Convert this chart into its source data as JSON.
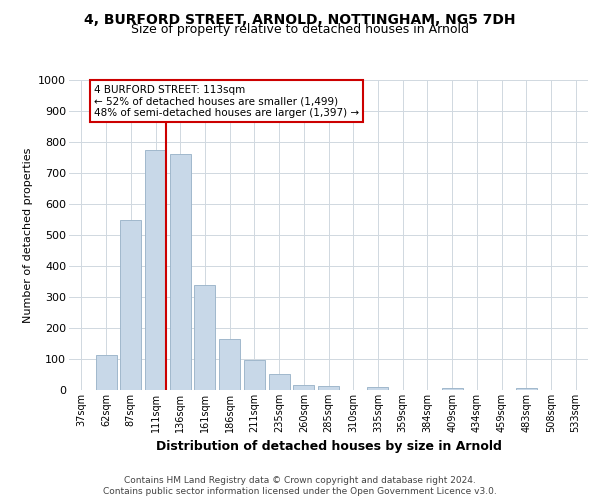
{
  "title": "4, BURFORD STREET, ARNOLD, NOTTINGHAM, NG5 7DH",
  "subtitle": "Size of property relative to detached houses in Arnold",
  "xlabel": "Distribution of detached houses by size in Arnold",
  "ylabel": "Number of detached properties",
  "categories": [
    "37sqm",
    "62sqm",
    "87sqm",
    "111sqm",
    "136sqm",
    "161sqm",
    "186sqm",
    "211sqm",
    "235sqm",
    "260sqm",
    "285sqm",
    "310sqm",
    "335sqm",
    "359sqm",
    "384sqm",
    "409sqm",
    "434sqm",
    "459sqm",
    "483sqm",
    "508sqm",
    "533sqm"
  ],
  "values": [
    0,
    113,
    550,
    775,
    760,
    340,
    165,
    97,
    53,
    15,
    12,
    0,
    10,
    0,
    0,
    8,
    0,
    0,
    8,
    0,
    0
  ],
  "bar_color": "#c8d8e8",
  "bar_edge_color": "#a0b8cc",
  "highlight_index": 3,
  "highlight_line_color": "#cc0000",
  "ylim": [
    0,
    1000
  ],
  "yticks": [
    0,
    100,
    200,
    300,
    400,
    500,
    600,
    700,
    800,
    900,
    1000
  ],
  "annotation_text": "4 BURFORD STREET: 113sqm\n← 52% of detached houses are smaller (1,499)\n48% of semi-detached houses are larger (1,397) →",
  "annotation_box_color": "#ffffff",
  "annotation_box_edge": "#cc0000",
  "footer_line1": "Contains HM Land Registry data © Crown copyright and database right 2024.",
  "footer_line2": "Contains public sector information licensed under the Open Government Licence v3.0.",
  "background_color": "#ffffff",
  "grid_color": "#d0d8e0",
  "title_fontsize": 10,
  "subtitle_fontsize": 9
}
